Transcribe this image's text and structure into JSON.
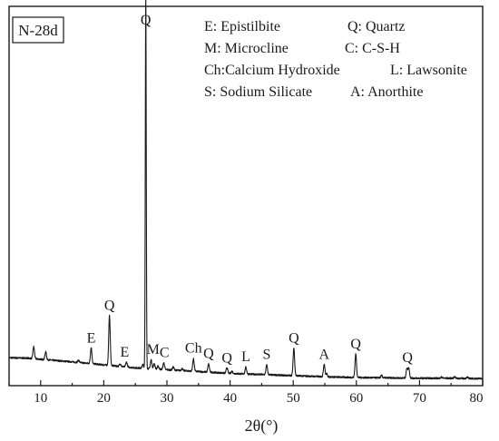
{
  "chart_data": {
    "type": "line",
    "sample_label": "N-28d",
    "xlabel": "2θ(°)",
    "ylabel": "",
    "xlim": [
      5,
      80
    ],
    "x_ticks": [
      10,
      20,
      30,
      40,
      50,
      60,
      70,
      80
    ],
    "y_ticks_shown": false,
    "grid": false,
    "legend_position": "top-right",
    "legend": [
      [
        "E: Epistilbite",
        "Q: Quartz"
      ],
      [
        "M: Microcline",
        "C: C-S-H"
      ],
      [
        "Ch:Calcium Hydroxide",
        "L: Lawsonite"
      ],
      [
        "S: Sodium Silicate",
        "A: Anorthite"
      ]
    ],
    "series": [
      {
        "baseline": [
          [
            5,
            7.0
          ],
          [
            8,
            6.9
          ],
          [
            10,
            6.6
          ],
          [
            15,
            5.9
          ],
          [
            20,
            5.1
          ],
          [
            25,
            4.3
          ],
          [
            30,
            3.8
          ],
          [
            35,
            3.3
          ],
          [
            40,
            2.8
          ],
          [
            45,
            2.5
          ],
          [
            50,
            2.2
          ],
          [
            55,
            1.9
          ],
          [
            60,
            1.7
          ],
          [
            65,
            1.6
          ],
          [
            70,
            1.5
          ],
          [
            75,
            1.5
          ],
          [
            80,
            1.4
          ]
        ],
        "peaks": [
          [
            8.9,
            3.2
          ],
          [
            10.8,
            2.1
          ],
          [
            16.0,
            0.6
          ],
          [
            18.0,
            4.3
          ],
          [
            20.9,
            13.3
          ],
          [
            22.6,
            0.7
          ],
          [
            23.6,
            1.3
          ],
          [
            26.2,
            1.0
          ],
          [
            26.65,
            100.0
          ],
          [
            27.5,
            2.4
          ],
          [
            28.0,
            1.4
          ],
          [
            28.6,
            0.8
          ],
          [
            29.5,
            1.8
          ],
          [
            31.0,
            0.8
          ],
          [
            32.4,
            0.5
          ],
          [
            34.2,
            3.3
          ],
          [
            36.6,
            2.2
          ],
          [
            39.5,
            1.5
          ],
          [
            40.3,
            0.6
          ],
          [
            42.5,
            1.8
          ],
          [
            45.8,
            2.6
          ],
          [
            50.1,
            7.4
          ],
          [
            54.9,
            3.4
          ],
          [
            55.3,
            0.8
          ],
          [
            59.9,
            6.3
          ],
          [
            64.0,
            0.6
          ],
          [
            68.0,
            2.6
          ],
          [
            68.3,
            2.7
          ],
          [
            73.5,
            0.3
          ],
          [
            75.6,
            0.4
          ],
          [
            77.6,
            0.3
          ]
        ]
      }
    ],
    "peak_labels": [
      {
        "text": "E",
        "x": 18.0
      },
      {
        "text": "Q",
        "x": 20.9
      },
      {
        "text": "E",
        "x": 23.3
      },
      {
        "text": "Q",
        "x": 26.65
      },
      {
        "text": "M",
        "x": 27.8
      },
      {
        "text": "C",
        "x": 29.6
      },
      {
        "text": "Ch",
        "x": 34.2
      },
      {
        "text": "Q",
        "x": 36.6
      },
      {
        "text": "Q",
        "x": 39.5
      },
      {
        "text": "L",
        "x": 42.5
      },
      {
        "text": "S",
        "x": 45.8
      },
      {
        "text": "Q",
        "x": 50.1
      },
      {
        "text": "A",
        "x": 54.9
      },
      {
        "text": "Q",
        "x": 59.9
      },
      {
        "text": "Q",
        "x": 68.1
      }
    ]
  }
}
